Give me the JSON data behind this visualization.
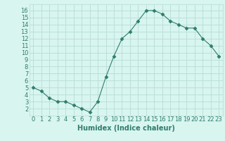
{
  "x": [
    0,
    1,
    2,
    3,
    4,
    5,
    6,
    7,
    8,
    9,
    10,
    11,
    12,
    13,
    14,
    15,
    16,
    17,
    18,
    19,
    20,
    21,
    22,
    23
  ],
  "y": [
    5,
    4.5,
    3.5,
    3,
    3,
    2.5,
    2,
    1.5,
    3,
    6.5,
    9.5,
    12,
    13,
    14.5,
    16,
    16,
    15.5,
    14.5,
    14,
    13.5,
    13.5,
    12,
    11,
    9.5
  ],
  "line_color": "#2e7d6e",
  "marker": "D",
  "bg_color": "#d8f5ef",
  "grid_major_color": "#b8ddd6",
  "grid_minor_color": "#cceee8",
  "tick_label_color": "#2e7d6e",
  "xlabel": "Humidex (Indice chaleur)",
  "xlabel_color": "#2e7d6e",
  "xlim": [
    -0.5,
    23.5
  ],
  "ylim": [
    1.0,
    16.9
  ],
  "yticks": [
    2,
    3,
    4,
    5,
    6,
    7,
    8,
    9,
    10,
    11,
    12,
    13,
    14,
    15,
    16
  ],
  "xticks": [
    0,
    1,
    2,
    3,
    4,
    5,
    6,
    7,
    8,
    9,
    10,
    11,
    12,
    13,
    14,
    15,
    16,
    17,
    18,
    19,
    20,
    21,
    22,
    23
  ],
  "font_size": 6,
  "xlabel_fontsize": 7,
  "markersize": 2.5,
  "linewidth": 0.8
}
